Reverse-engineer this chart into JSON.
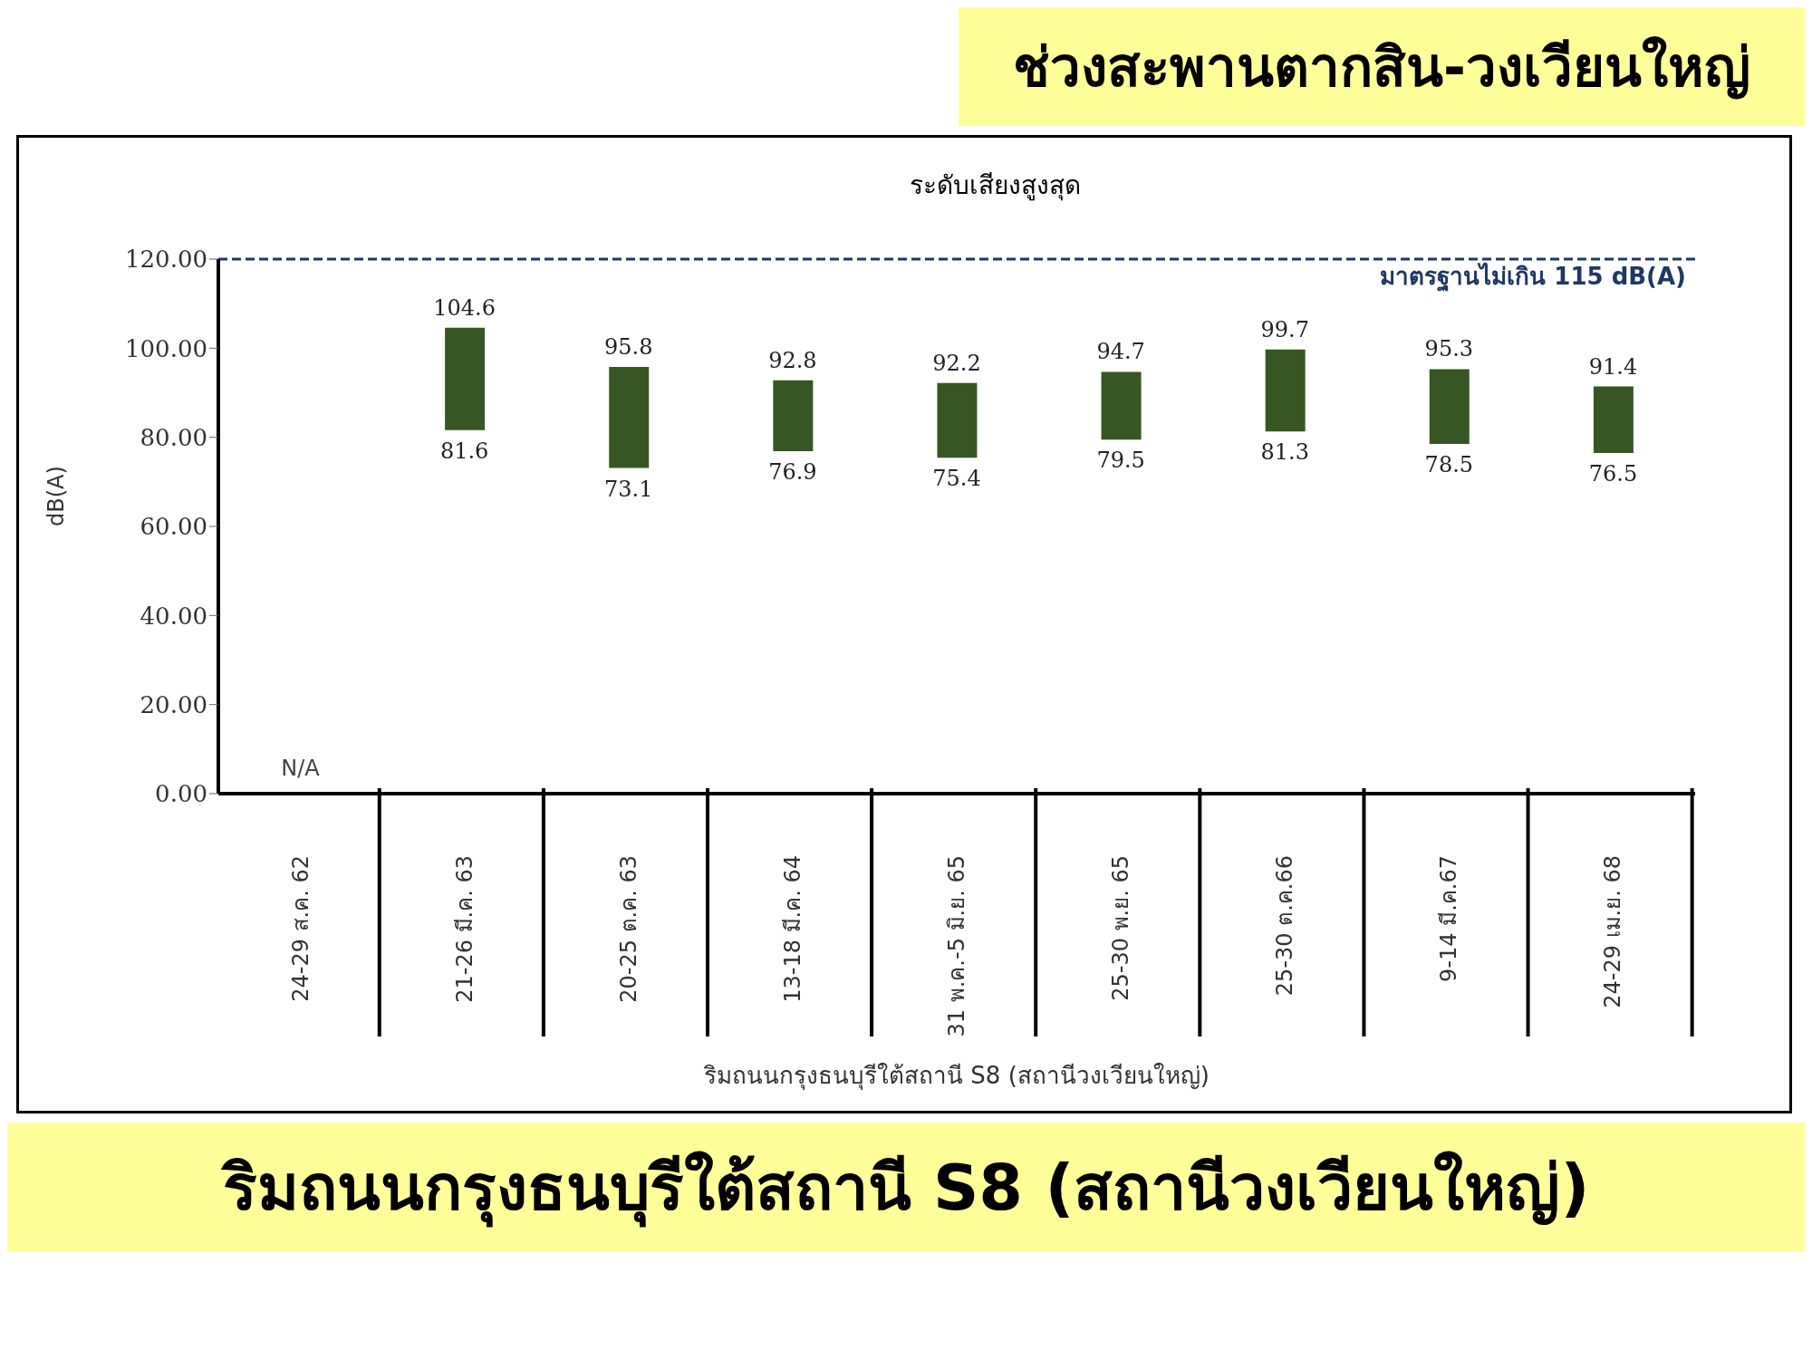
{
  "chart_data": {
    "type": "bar",
    "title": "ช่วงสะพานตากสิน-วงเวียนใหญ่",
    "subtitle": "ระดับเสียงสูงสุด",
    "ylabel": "dB(A)",
    "xlabel": "ริมถนนกรุงธนบุรีใต้สถานี S8 (สถานีวงเวียนใหญ่)",
    "categories": [
      "24-29 ส.ค. 62",
      "21-26 มี.ค. 63",
      "20-25 ต.ค. 63",
      "13-18 มี.ค. 64",
      "31 พ.ค.-5 มิ.ย. 65",
      "25-30 พ.ย. 65",
      "25-30 ต.ค.66",
      "9-14 มี.ค.67",
      "24-29 เม.ย. 68"
    ],
    "base": [
      null,
      81.6,
      73.1,
      76.9,
      75.4,
      79.5,
      81.3,
      78.5,
      76.5
    ],
    "values": [
      null,
      23.0,
      22.7,
      15.9,
      16.8,
      15.2,
      18.4,
      16.8,
      14.9
    ],
    "color": "#375623",
    "ylim": [
      0,
      120
    ],
    "yticks": [
      {
        "value": 0,
        "label": "0.00"
      },
      {
        "value": 20,
        "label": "20.00"
      },
      {
        "value": 40,
        "label": "40.00"
      },
      {
        "value": 60,
        "label": "60.00"
      },
      {
        "value": 80,
        "label": "80.00"
      },
      {
        "value": 100,
        "label": "100.00"
      },
      {
        "value": 120,
        "label": "120.00"
      }
    ],
    "ref_lines": [
      {
        "axis": "y",
        "value": 120,
        "label": "มาตรฐานไม่เกิน 115 dB(A)",
        "color": "#1f3864",
        "line_style": "dashed"
      }
    ],
    "annotations": [
      "N/A",
      {
        "text": "104.6",
        "x": "21-26 มี.ค. 63",
        "y": 104.6
      },
      {
        "text": "81.6",
        "x": "21-26 มี.ค. 63",
        "y": 81.6
      },
      {
        "text": "95.8",
        "x": "20-25 ต.ค. 63",
        "y": 95.8
      },
      {
        "text": "73.1",
        "x": "20-25 ต.ค. 63",
        "y": 73.1
      },
      {
        "text": "92.8",
        "x": "13-18 มี.ค. 64",
        "y": 92.8
      },
      {
        "text": "76.9",
        "x": "13-18 มี.ค. 64",
        "y": 76.9
      },
      {
        "text": "92.2",
        "x": "31 พ.ค.-5 มิ.ย. 65",
        "y": 92.2
      },
      {
        "text": "75.4",
        "x": "31 พ.ค.-5 มิ.ย. 65",
        "y": 75.4
      },
      {
        "text": "94.7",
        "x": "25-30 พ.ย. 65",
        "y": 94.7
      },
      {
        "text": "79.5",
        "x": "25-30 พ.ย. 65",
        "y": 79.5
      },
      {
        "text": "99.7",
        "x": "25-30 ต.ค.66",
        "y": 99.7
      },
      {
        "text": "81.3",
        "x": "25-30 ต.ค.66",
        "y": 81.3
      },
      {
        "text": "95.3",
        "x": "9-14 มี.ค.67",
        "y": 95.3
      },
      {
        "text": "78.5",
        "x": "9-14 มี.ค.67",
        "y": 78.5
      },
      {
        "text": "91.4",
        "x": "24-29 เม.ย. 68",
        "y": 91.4
      },
      {
        "text": "76.5",
        "x": "24-29 เม.ย. 68",
        "y": 76.5
      },
      "ริมถนนกรุงธนบุรีใต้สถานี S8 (สถานีวงเวียนใหญ่)"
    ]
  }
}
